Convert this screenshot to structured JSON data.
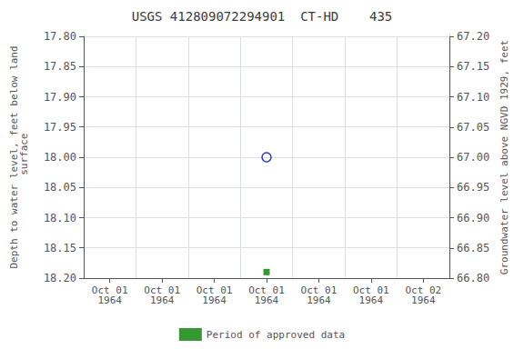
{
  "chart_data": {
    "type": "scatter",
    "title": "USGS 412809072294901  CT-HD    435",
    "ylabel": "Depth to water level, feet below land\n surface",
    "y2label": "Groundwater level above NGVD 1929, feet",
    "categories": [
      "Oct 01\n1964",
      "Oct 01\n1964",
      "Oct 01\n1964",
      "Oct 01\n1964",
      "Oct 01\n1964",
      "Oct 01\n1964",
      "Oct 02\n1964"
    ],
    "series": [
      {
        "color": "#0000cc",
        "marker": "open_circle",
        "values": [
          null,
          null,
          null,
          18.0,
          null,
          null,
          null
        ]
      },
      {
        "name": "Period of approved data",
        "color": "#008000",
        "marker": "square",
        "values": [
          null,
          null,
          null,
          18.19,
          null,
          null,
          null
        ]
      }
    ],
    "ylim": [
      18.2,
      17.8
    ],
    "yticks": [
      {
        "value": 17.8,
        "label": "17.80"
      },
      17.85,
      {
        "value": 17.9,
        "label": "17.90"
      },
      17.95,
      {
        "value": 18.0,
        "label": "18.00"
      },
      18.05,
      {
        "value": 18.1,
        "label": "18.10"
      },
      18.15,
      {
        "value": 18.2,
        "label": "18.20"
      }
    ],
    "y2lim": [
      66.8,
      67.2
    ],
    "y2ticks": [
      {
        "value": 67.2,
        "label": "67.20"
      },
      67.15,
      {
        "value": 67.1,
        "label": "67.10"
      },
      67.05,
      {
        "value": 67.0,
        "label": "67.00"
      },
      66.95,
      {
        "value": 66.9,
        "label": "66.90"
      },
      66.85,
      {
        "value": 66.8,
        "label": "66.80"
      }
    ],
    "grid": true,
    "legend": "bottom"
  }
}
